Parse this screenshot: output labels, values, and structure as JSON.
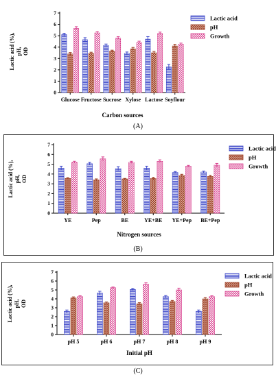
{
  "chart_data": [
    {
      "type": "bar",
      "panel_label": "(A)",
      "xlabel": "Carbon sources",
      "ylabel": [
        "Lactic acid (%),",
        "pH,",
        "OD"
      ],
      "categories": [
        "Glucose",
        "Fructose",
        "Sucrose",
        "Xylose",
        "Lactose",
        "Soyflour"
      ],
      "ylim": [
        0,
        7
      ],
      "yticks": [
        0,
        1,
        2,
        3,
        4,
        5,
        6,
        7
      ],
      "legend_position": "right",
      "series": [
        {
          "name": "Lactic acid",
          "color": "#3a45c8",
          "pattern": "horizontal-lines",
          "values": [
            5.1,
            4.65,
            4.15,
            3.45,
            4.7,
            2.25
          ],
          "errors": [
            0.12,
            0.18,
            0.12,
            0.12,
            0.22,
            0.22
          ]
        },
        {
          "name": "pH",
          "color": "#9b3a1e",
          "pattern": "crosshatch",
          "values": [
            3.4,
            3.45,
            3.65,
            3.85,
            3.5,
            4.1
          ],
          "errors": [
            0.12,
            0.1,
            0.08,
            0.12,
            0.12,
            0.15
          ]
        },
        {
          "name": "Growth",
          "color": "#d8418f",
          "pattern": "checker",
          "values": [
            5.65,
            5.25,
            4.8,
            4.4,
            5.2,
            4.25
          ],
          "errors": [
            0.15,
            0.12,
            0.12,
            0.12,
            0.12,
            0.1
          ]
        }
      ]
    },
    {
      "type": "bar",
      "panel_label": "(B)",
      "xlabel": "Nitrogen sources",
      "ylabel": [
        "Lactic acid (%),",
        "pH,",
        "OD"
      ],
      "categories": [
        "YE",
        "Pep",
        "BE",
        "YE+BE",
        "YE+Pep",
        "BE+Pep"
      ],
      "ylim": [
        0,
        7
      ],
      "yticks": [
        0,
        1,
        2,
        3,
        4,
        5,
        6,
        7
      ],
      "legend_position": "right",
      "series": [
        {
          "name": "Lactic acid",
          "color": "#3a45c8",
          "pattern": "horizontal-lines",
          "values": [
            4.6,
            5.05,
            4.55,
            4.6,
            4.15,
            4.2
          ],
          "errors": [
            0.2,
            0.15,
            0.2,
            0.2,
            0.1,
            0.1
          ]
        },
        {
          "name": "pH",
          "color": "#9b3a1e",
          "pattern": "crosshatch",
          "values": [
            3.55,
            3.4,
            3.5,
            3.55,
            3.85,
            3.75
          ],
          "errors": [
            0.08,
            0.1,
            0.05,
            0.12,
            0.12,
            0.12
          ]
        },
        {
          "name": "Growth",
          "color": "#d8418f",
          "pattern": "checker",
          "values": [
            5.2,
            5.55,
            5.2,
            5.3,
            4.8,
            4.9
          ],
          "errors": [
            0.1,
            0.2,
            0.1,
            0.15,
            0.08,
            0.18
          ]
        }
      ]
    },
    {
      "type": "bar",
      "panel_label": "(C)",
      "xlabel": "Initial pH",
      "ylabel": [
        "Lactic acid (%),",
        "pH,",
        "OD"
      ],
      "categories": [
        "pH 5",
        "pH 6",
        "pH 7",
        "pH 8",
        "pH 9"
      ],
      "ylim": [
        0,
        7
      ],
      "yticks": [
        0,
        1,
        2,
        3,
        4,
        5,
        6,
        7
      ],
      "legend_position": "right",
      "series": [
        {
          "name": "Lactic acid",
          "color": "#3a45c8",
          "pattern": "horizontal-lines",
          "values": [
            2.6,
            4.65,
            5.05,
            4.25,
            2.6
          ],
          "errors": [
            0.15,
            0.2,
            0.12,
            0.12,
            0.15
          ]
        },
        {
          "name": "pH",
          "color": "#9b3a1e",
          "pattern": "crosshatch",
          "values": [
            4.1,
            3.55,
            3.45,
            3.7,
            4.0
          ],
          "errors": [
            0.12,
            0.1,
            0.12,
            0.12,
            0.15
          ]
        },
        {
          "name": "Growth",
          "color": "#d8418f",
          "pattern": "checker",
          "values": [
            4.25,
            5.25,
            5.65,
            5.0,
            4.25
          ],
          "errors": [
            0.1,
            0.08,
            0.15,
            0.2,
            0.1
          ]
        }
      ]
    }
  ]
}
